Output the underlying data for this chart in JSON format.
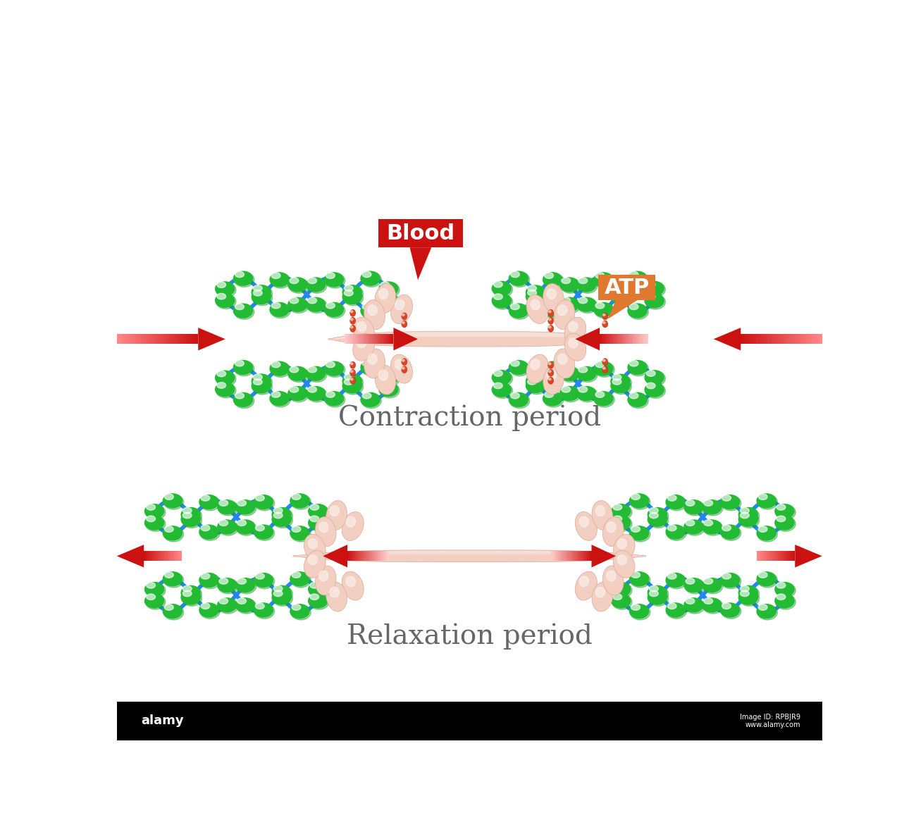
{
  "bg_color": "#ffffff",
  "actin_blue": "#2288ee",
  "actin_green": "#22bb33",
  "myosin_color": "#f2cfc0",
  "myosin_light": "#faeae4",
  "myosin_dark": "#dba898",
  "arrow_color": "#cc1111",
  "arrow_fade": "#ff8888",
  "blood_box_color": "#cc1111",
  "atp_box_color": "#e07830",
  "label_color": "#666666",
  "contraction_label": "Contraction period",
  "relaxation_label": "Relaxation period",
  "blood_label": "Blood",
  "atp_label": "ATP",
  "label_fontsize": 28,
  "tag_fontsize": 22,
  "red_bead_color": "#dd4422"
}
